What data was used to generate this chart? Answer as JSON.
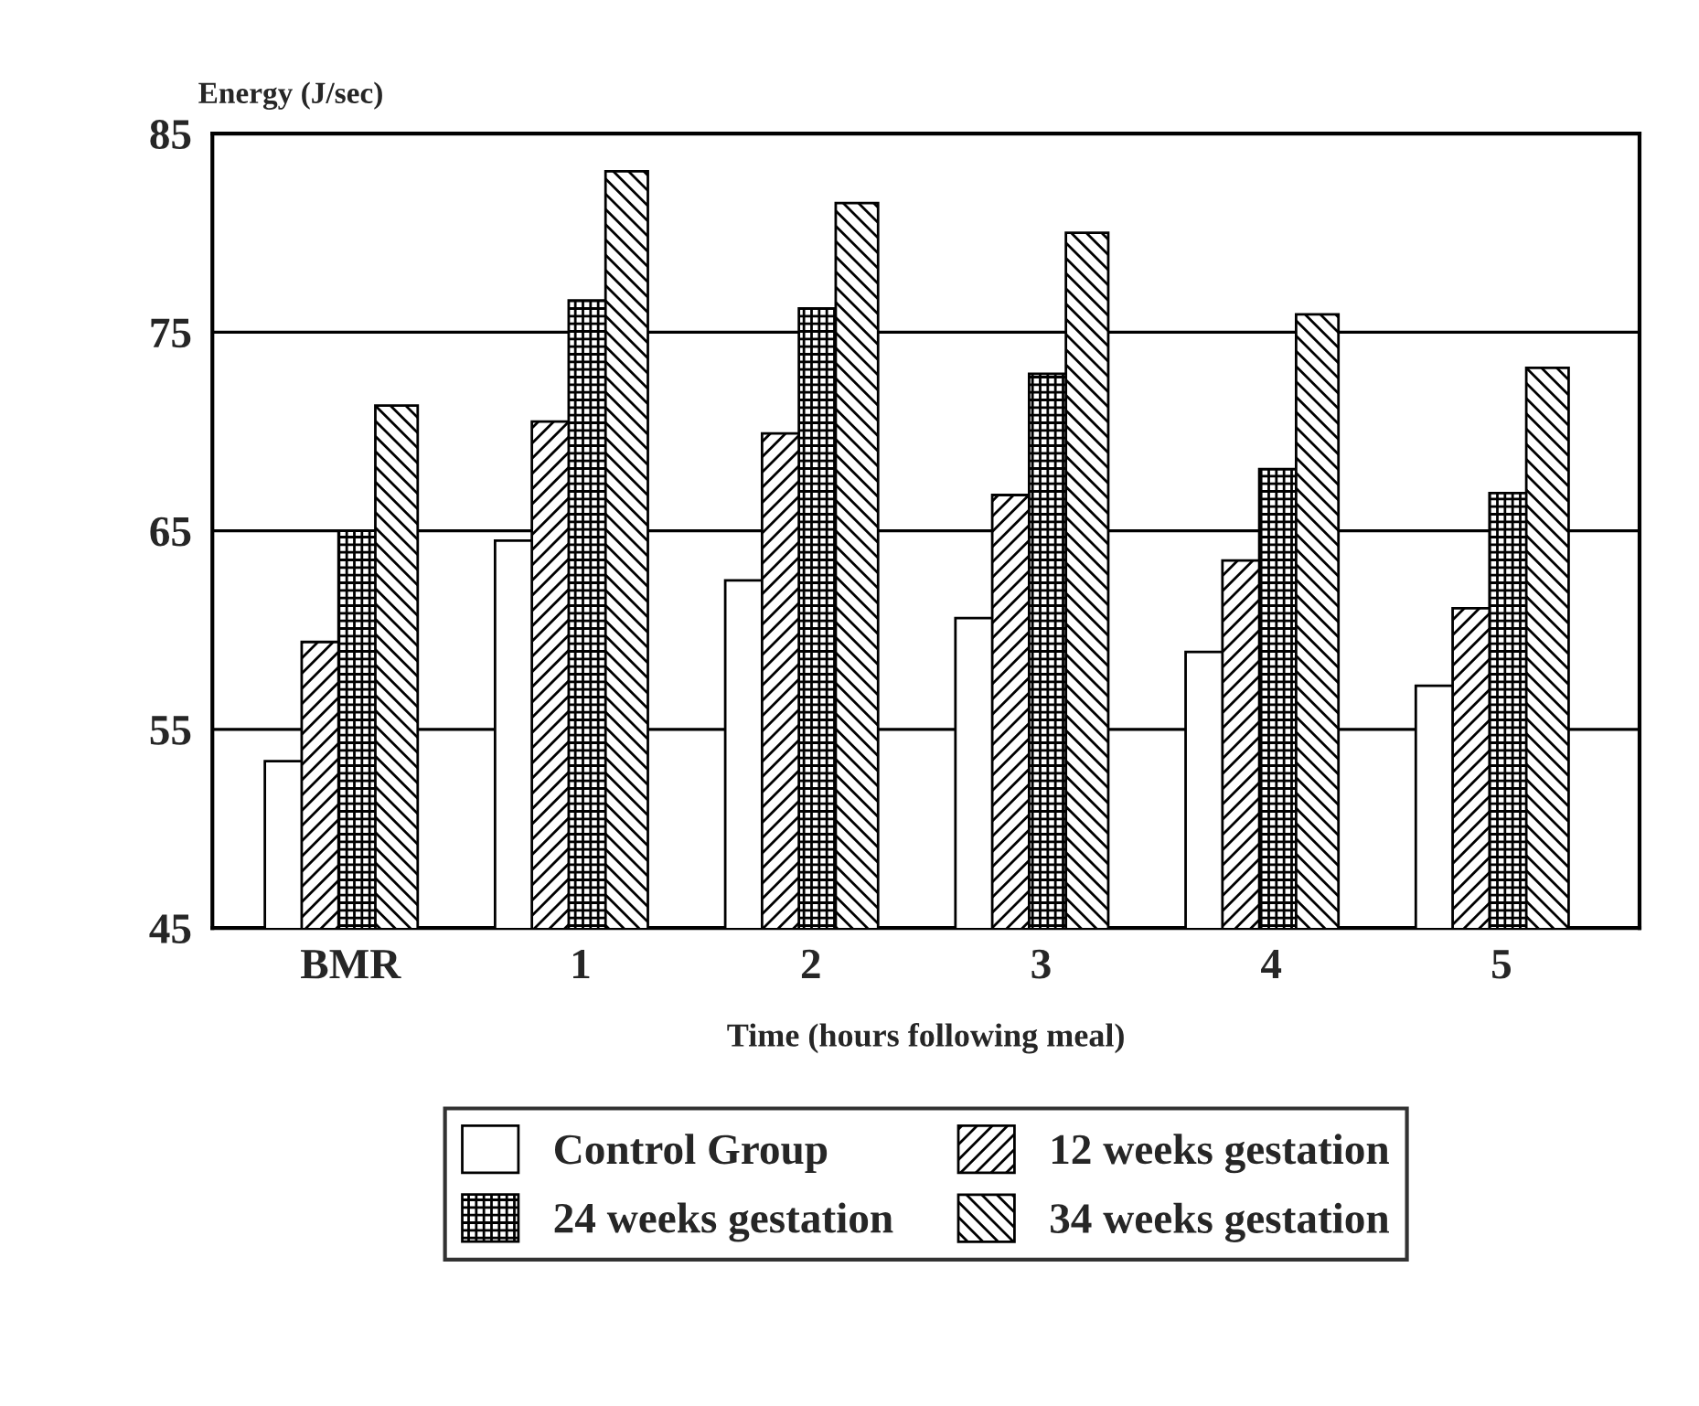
{
  "chart_data": {
    "type": "bar",
    "ylabel": "Energy (J/sec)",
    "xlabel": "Time (hours following meal)",
    "categories": [
      "BMR",
      "1",
      "2",
      "3",
      "4",
      "5"
    ],
    "series": [
      {
        "name": "Control Group",
        "color": "#ffffff",
        "values": [
          53.4,
          64.5,
          62.5,
          60.6,
          58.9,
          57.2
        ]
      },
      {
        "name": "12 weeks gestation",
        "color": "#000000",
        "values": [
          59.4,
          70.5,
          69.9,
          66.8,
          63.5,
          61.1
        ]
      },
      {
        "name": "24 weeks gestation",
        "color": "#000000",
        "values": [
          65.0,
          76.6,
          76.2,
          72.9,
          68.1,
          66.9
        ]
      },
      {
        "name": "34 weeks gestation",
        "color": "#000000",
        "values": [
          71.3,
          83.1,
          81.5,
          80.0,
          75.9,
          73.2
        ]
      }
    ],
    "ylim": [
      45,
      85
    ],
    "yticks": [
      45,
      55,
      65,
      75,
      85
    ],
    "grid": "y",
    "legend": "bottom"
  }
}
